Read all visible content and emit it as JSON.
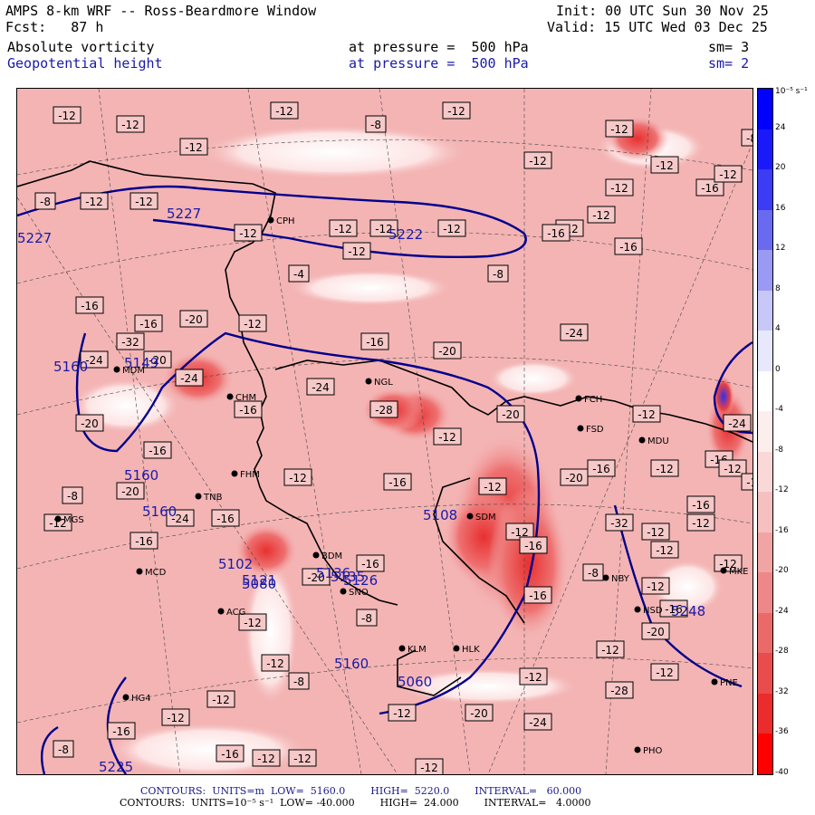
{
  "header": {
    "title": "AMPS 8-km WRF -- Ross-Beardmore Window",
    "init": "Init: 00 UTC Sun 30 Nov 25",
    "fcst": "Fcst:   87 h",
    "valid": "Valid: 15 UTC Wed 03 Dec 25",
    "field1": {
      "name": "Absolute vorticity",
      "level": "at pressure =  500 hPa",
      "sm": "sm= 3"
    },
    "field2": {
      "name": "Geopotential height",
      "level": "at pressure =  500 hPa",
      "sm": "sm= 2"
    }
  },
  "colorbar": {
    "unit": "10⁻⁵ s⁻¹",
    "ticks": [
      "24",
      "20",
      "16",
      "12",
      "8",
      "4",
      "0",
      "-4",
      "-8",
      "-12",
      "-16",
      "-20",
      "-24",
      "-28",
      "-32",
      "-36",
      "-40"
    ],
    "colors": {
      "blue_max": "#0000ff",
      "blue_mid": "#6060f0",
      "blue_light": "#c8c8f8",
      "white": "#ffffff",
      "pink_light": "#fce0e0",
      "pink": "#f0a8a8",
      "red": "#e84040",
      "red_max": "#ff0000"
    }
  },
  "map": {
    "background": "#f4b4b4",
    "contour_color": "#00008c",
    "height_labels": [
      "5160",
      "5160",
      "5160",
      "5222",
      "5227",
      "5227",
      "5108",
      "5102",
      "5121",
      "5080",
      "5160",
      "5060",
      "5248",
      "5225",
      "5149",
      "5135",
      "5136",
      "5126"
    ],
    "vort_labels": [
      "-12",
      "-12",
      "-12",
      "-12",
      "-8",
      "-12",
      "-12",
      "-12",
      "-8",
      "-12",
      "-12",
      "-12",
      "-12",
      "-4",
      "-12",
      "-12",
      "-12",
      "-8",
      "-12",
      "-16",
      "-16",
      "-16",
      "-20",
      "-12",
      "-24",
      "-32",
      "-20",
      "-24",
      "-28",
      "-24",
      "-16",
      "-20",
      "-24",
      "-16",
      "-20",
      "-16",
      "-20",
      "-12",
      "-8",
      "-12",
      "-16",
      "-24",
      "-16",
      "-20",
      "-16",
      "-16",
      "-12",
      "-12",
      "-20",
      "-16",
      "-12",
      "-12",
      "-16",
      "-12",
      "-12",
      "-12",
      "-16",
      "-12",
      "-8",
      "-8",
      "-12",
      "-16",
      "-16",
      "-12",
      "-12",
      "-12",
      "-12",
      "-16",
      "-12",
      "-16",
      "-20",
      "-16",
      "-12",
      "-8",
      "-12",
      "-8",
      "-12",
      "-8",
      "-16",
      "-12",
      "-12",
      "-12",
      "-16",
      "-12",
      "-12",
      "-12",
      "-20",
      "-24",
      "-28",
      "-24",
      "-12",
      "-32",
      "-12",
      "-16",
      "-20",
      "-12"
    ],
    "stations": [
      "CPH",
      "MDM",
      "CHM",
      "FHM",
      "TNB",
      "MGS",
      "MCD",
      "BDM",
      "SNO",
      "SDM",
      "NGL",
      "FCH",
      "FSD",
      "MDU",
      "NBY",
      "NSD",
      "PNE",
      "MKE",
      "KLM",
      "HLK",
      "ACG",
      "HG4",
      "PHO"
    ]
  },
  "footer": {
    "line1": "CONTOURS:  UNITS=m  LOW=  5160.0        HIGH=  5220.0        INTERVAL=   60.000",
    "line2": "CONTOURS:  UNITS=10⁻⁵ s⁻¹  LOW= -40.000        HIGH=  24.000        INTERVAL=   4.0000"
  }
}
